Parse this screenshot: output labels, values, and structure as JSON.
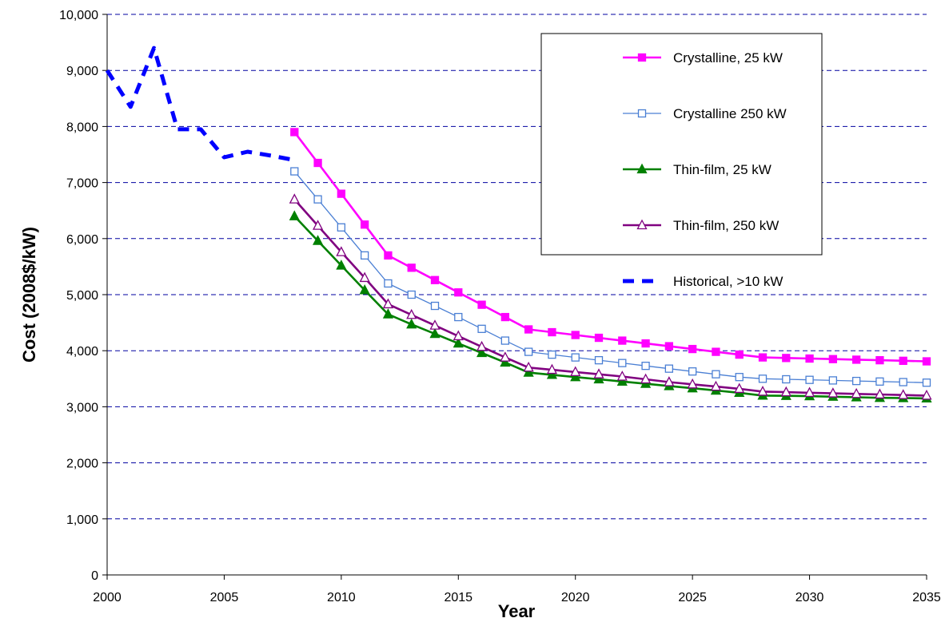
{
  "chart_data": {
    "type": "line",
    "title": "",
    "xlabel": "Year",
    "ylabel": "Cost (2008$/kW)",
    "xlim": [
      2000,
      2035
    ],
    "ylim": [
      0,
      10000
    ],
    "x_ticks": [
      "2000",
      "2005",
      "2010",
      "2015",
      "2020",
      "2025",
      "2030",
      "2035"
    ],
    "y_ticks": [
      "0",
      "1,000",
      "2,000",
      "3,000",
      "4,000",
      "5,000",
      "6,000",
      "7,000",
      "8,000",
      "9,000",
      "10,000"
    ],
    "grid": "horizontal dashed",
    "legend_position": "top-right",
    "series": [
      {
        "name": "Crystalline, 25 kW",
        "color": "#ff00ff",
        "marker": "filled-square",
        "x": [
          2008,
          2009,
          2010,
          2011,
          2012,
          2013,
          2014,
          2015,
          2016,
          2017,
          2018,
          2019,
          2020,
          2021,
          2022,
          2023,
          2024,
          2025,
          2026,
          2027,
          2028,
          2029,
          2030,
          2031,
          2032,
          2033,
          2034,
          2035
        ],
        "values": [
          7900,
          7350,
          6800,
          6250,
          5700,
          5480,
          5260,
          5040,
          4820,
          4600,
          4380,
          4330,
          4280,
          4230,
          4180,
          4130,
          4080,
          4030,
          3980,
          3930,
          3880,
          3870,
          3860,
          3850,
          3840,
          3830,
          3820,
          3810
        ]
      },
      {
        "name": "Crystalline 250 kW",
        "color": "#4a7fd4",
        "marker": "open-square",
        "x": [
          2008,
          2009,
          2010,
          2011,
          2012,
          2013,
          2014,
          2015,
          2016,
          2017,
          2018,
          2019,
          2020,
          2021,
          2022,
          2023,
          2024,
          2025,
          2026,
          2027,
          2028,
          2029,
          2030,
          2031,
          2032,
          2033,
          2034,
          2035
        ],
        "values": [
          7200,
          6700,
          6200,
          5700,
          5200,
          5000,
          4800,
          4600,
          4390,
          4180,
          3980,
          3930,
          3880,
          3830,
          3780,
          3730,
          3680,
          3630,
          3580,
          3530,
          3500,
          3490,
          3480,
          3470,
          3460,
          3450,
          3440,
          3430
        ]
      },
      {
        "name": "Thin-film, 25 kW",
        "color": "#008000",
        "marker": "filled-triangle",
        "x": [
          2008,
          2009,
          2010,
          2011,
          2012,
          2013,
          2014,
          2015,
          2016,
          2017,
          2018,
          2019,
          2020,
          2021,
          2022,
          2023,
          2024,
          2025,
          2026,
          2027,
          2028,
          2029,
          2030,
          2031,
          2032,
          2033,
          2034,
          2035
        ],
        "values": [
          6400,
          5960,
          5520,
          5080,
          4650,
          4470,
          4300,
          4130,
          3960,
          3790,
          3610,
          3570,
          3530,
          3490,
          3450,
          3410,
          3370,
          3330,
          3290,
          3250,
          3200,
          3195,
          3190,
          3180,
          3170,
          3160,
          3155,
          3150
        ]
      },
      {
        "name": "Thin-film, 250 kW",
        "color": "#800080",
        "marker": "open-triangle",
        "x": [
          2008,
          2009,
          2010,
          2011,
          2012,
          2013,
          2014,
          2015,
          2016,
          2017,
          2018,
          2019,
          2020,
          2021,
          2022,
          2023,
          2024,
          2025,
          2026,
          2027,
          2028,
          2029,
          2030,
          2031,
          2032,
          2033,
          2034,
          2035
        ],
        "values": [
          6700,
          6230,
          5760,
          5300,
          4830,
          4640,
          4450,
          4260,
          4070,
          3880,
          3700,
          3660,
          3620,
          3580,
          3540,
          3490,
          3440,
          3400,
          3360,
          3320,
          3270,
          3260,
          3250,
          3240,
          3230,
          3220,
          3210,
          3200
        ]
      },
      {
        "name": "Historical, >10 kW",
        "color": "#0000ff",
        "marker": "none",
        "dashed": true,
        "x": [
          2000,
          2001,
          2002,
          2003,
          2004,
          2005,
          2006,
          2007,
          2008
        ],
        "values": [
          9000,
          8350,
          9400,
          7950,
          7950,
          7450,
          7550,
          7480,
          7400
        ]
      }
    ]
  }
}
